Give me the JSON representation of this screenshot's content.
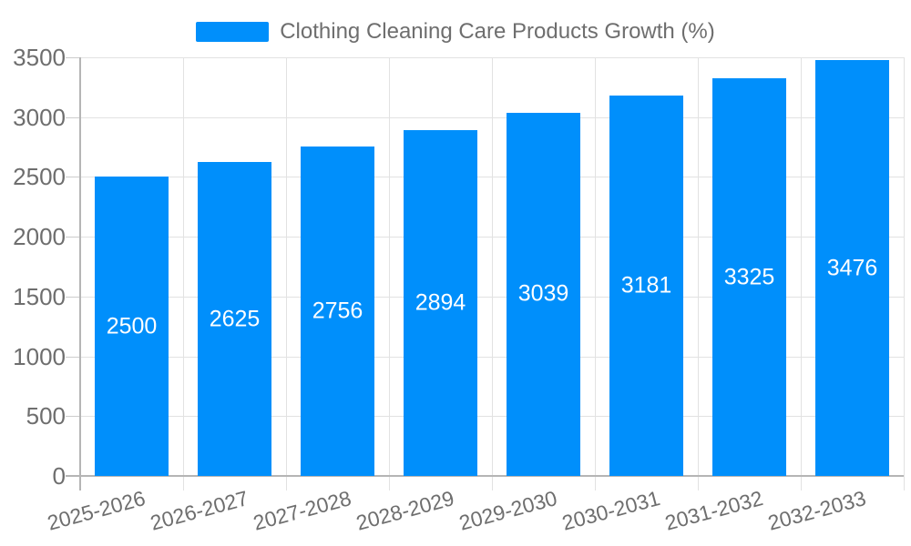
{
  "chart_data": {
    "type": "bar",
    "title": "",
    "legend": {
      "position": "top",
      "entries": [
        {
          "label": "Clothing Cleaning Care Products Growth (%)",
          "color": "#008FFB"
        }
      ]
    },
    "categories": [
      "2025-2026",
      "2026-2027",
      "2027-2028",
      "2028-2029",
      "2029-2030",
      "2030-2031",
      "2031-2032",
      "2032-2033"
    ],
    "series": [
      {
        "name": "Clothing Cleaning Care Products Growth (%)",
        "values": [
          2500,
          2625,
          2756,
          2894,
          3039,
          3181,
          3325,
          3476
        ]
      }
    ],
    "data_labels": [
      "2500",
      "2625",
      "2756",
      "2894",
      "3039",
      "3181",
      "3325",
      "3476"
    ],
    "xlabel": "",
    "ylabel": "",
    "ylim": [
      0,
      3500
    ],
    "yticks": [
      0,
      500,
      1000,
      1500,
      2000,
      2500,
      3000,
      3500
    ],
    "ytick_labels": [
      "0",
      "500",
      "1000",
      "1500",
      "2000",
      "2500",
      "3000",
      "3500"
    ],
    "grid": true,
    "x_label_rotation": -15,
    "colors": {
      "bar": "#008FFB",
      "data_label": "#FFFFFF",
      "axis_label": "#6E6E6E",
      "legend_label": "#6E6E6E",
      "gridline": "#E2E2E2",
      "axis_line": "#B5B5B5",
      "background": "#FFFFFF"
    }
  }
}
